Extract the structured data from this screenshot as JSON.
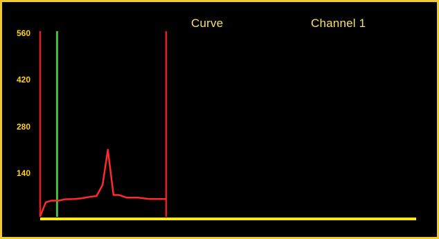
{
  "header": {
    "curve_label": "Curve",
    "channel_label": "Channel 1"
  },
  "colors": {
    "background": "#000000",
    "frame": "#f2ca2a",
    "text": "#f7e26b",
    "tick": "#ffd11a",
    "curve": "#ff2a2a",
    "marker_red": "#e81d1d",
    "marker_green": "#3fbf3f",
    "baseline": "#ffe81a"
  },
  "chart_data": {
    "type": "line",
    "title": "",
    "xlabel": "",
    "ylabel": "",
    "ylim": [
      0,
      560
    ],
    "xlim": [
      0,
      100
    ],
    "y_ticks": [
      "560",
      "420",
      "280",
      "140"
    ],
    "grid": false,
    "series": [
      {
        "color": "#ff2a2a",
        "x": [
          0,
          1.5,
          3.0,
          5.0,
          6.5,
          9.0,
          11.0,
          13.0,
          15.0,
          16.6,
          18.0,
          19.5,
          21.0,
          23.0,
          24.5,
          26.0,
          29.0,
          30.0,
          33.5
        ],
        "y": [
          8,
          50,
          55,
          55,
          59,
          60,
          62,
          66,
          69,
          102,
          208,
          72,
          72,
          64,
          64,
          64,
          60,
          60,
          60
        ]
      }
    ],
    "markers": [
      {
        "x": 0,
        "color": "red"
      },
      {
        "x": 4.5,
        "color": "green"
      },
      {
        "x": 33.5,
        "color": "red"
      }
    ],
    "baseline_y": 0
  }
}
